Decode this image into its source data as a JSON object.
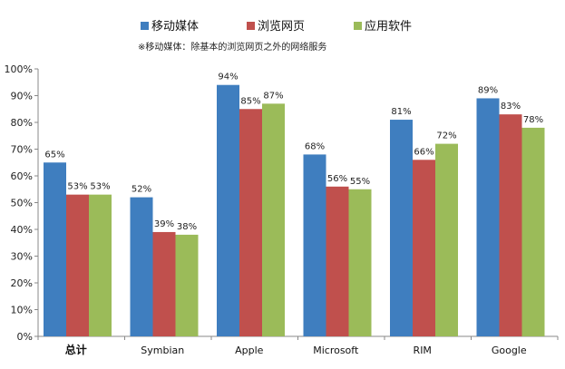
{
  "chart_data": {
    "type": "bar",
    "categories": [
      "总计",
      "Symbian",
      "Apple",
      "Microsoft",
      "RIM",
      "Google"
    ],
    "series": [
      {
        "name": "移动媒体",
        "values": [
          65,
          52,
          94,
          68,
          81,
          89
        ],
        "labels": [
          "65%",
          "52%",
          "94%",
          "68%",
          "81%",
          "89%"
        ]
      },
      {
        "name": "浏览网页",
        "values": [
          53,
          39,
          85,
          56,
          66,
          83
        ],
        "labels": [
          "53%",
          "39%",
          "85%",
          "56%",
          "66%",
          "83%"
        ]
      },
      {
        "name": "应用软件",
        "values": [
          53,
          38,
          87,
          55,
          72,
          78
        ],
        "labels": [
          "53%",
          "38%",
          "87%",
          "55%",
          "72%",
          "78%"
        ]
      }
    ],
    "colors": [
      "#3f7ebf",
      "#c0504d",
      "#9bbb59"
    ],
    "note": "※移动媒体：除基本的浏览网页之外的网络服务",
    "ylim": [
      0,
      100
    ],
    "yticks": [
      0,
      10,
      20,
      30,
      40,
      50,
      60,
      70,
      80,
      90,
      100
    ],
    "ytick_labels": [
      "0%",
      "10%",
      "20%",
      "30%",
      "40%",
      "50%",
      "60%",
      "70%",
      "80%",
      "90%",
      "100%"
    ],
    "legend_position": "top",
    "grid": false
  }
}
